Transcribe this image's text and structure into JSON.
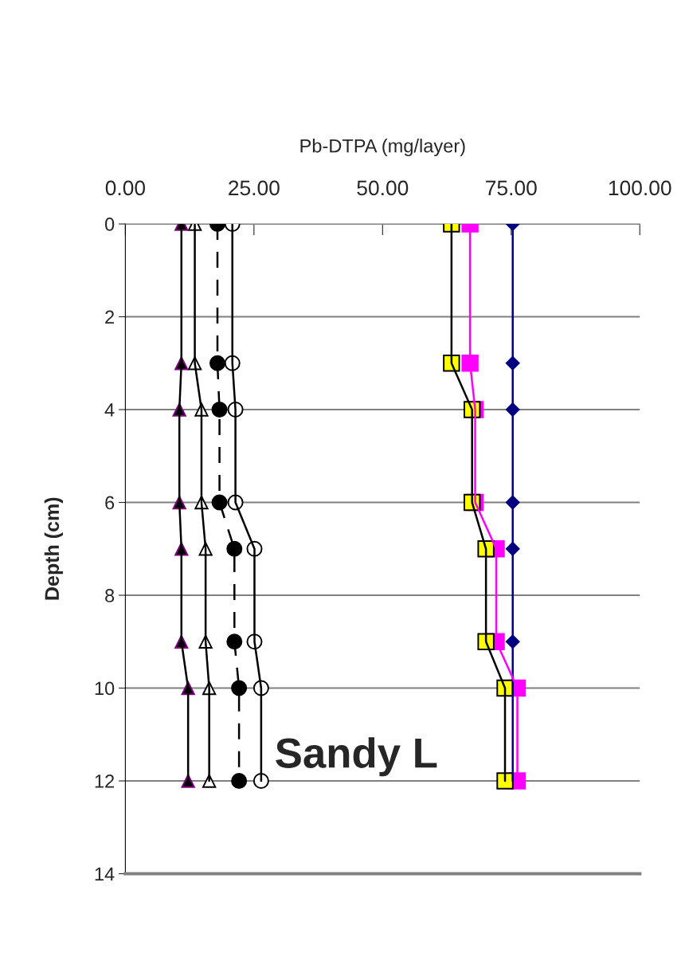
{
  "chart_data": {
    "type": "line",
    "orientation": "horizontal",
    "xlabel": "Pb-DTPA (mg/layer)",
    "ylabel": "Depth (cm)",
    "xlim": [
      0,
      100
    ],
    "xticks": [
      {
        "value": 0,
        "label": "0.00"
      },
      {
        "value": 25,
        "label": "25.00"
      },
      {
        "value": 50,
        "label": "50.00"
      },
      {
        "value": 75,
        "label": "75.00"
      },
      {
        "value": 100,
        "label": "100.00"
      }
    ],
    "ylim": [
      14,
      0
    ],
    "yticks": [
      0,
      2,
      4,
      6,
      8,
      10,
      12,
      14
    ],
    "grid": "y",
    "legend": false,
    "annotations": [
      "Sandy L"
    ],
    "series": [
      {
        "color": "#000000",
        "marker": "triangle",
        "line_style": "solid",
        "x": [
          0,
          3,
          4,
          6,
          7,
          9,
          10,
          12
        ],
        "values": [
          10.9,
          10.9,
          10.5,
          10.5,
          10.9,
          10.9,
          12.2,
          12.2
        ]
      },
      {
        "color": "#ffffff",
        "marker": "triangle",
        "line_style": "solid",
        "x": [
          0,
          3,
          4,
          6,
          7,
          9,
          10,
          12
        ],
        "values": [
          13.5,
          13.5,
          14.8,
          14.8,
          15.6,
          15.6,
          16.3,
          16.3
        ]
      },
      {
        "color": "#000000",
        "marker": "circle",
        "line_style": "dashed",
        "x": [
          0,
          3,
          4,
          6,
          7,
          9,
          10,
          12
        ],
        "values": [
          17.9,
          17.9,
          18.3,
          18.3,
          21.2,
          21.2,
          22.1,
          22.1
        ]
      },
      {
        "color": "#ffffff",
        "marker": "circle",
        "line_style": "solid",
        "x": [
          0,
          3,
          4,
          6,
          7,
          9,
          10,
          12
        ],
        "values": [
          20.8,
          20.8,
          21.4,
          21.4,
          25.1,
          25.1,
          26.4,
          26.4
        ]
      },
      {
        "color": "#ffff00",
        "marker": "square",
        "line_style": "solid",
        "x": [
          0,
          3,
          4,
          6,
          7,
          9,
          10,
          12
        ],
        "values": [
          63.4,
          63.4,
          67.4,
          67.4,
          70.1,
          70.1,
          73.8,
          73.8
        ]
      },
      {
        "color": "#ff00ff",
        "marker": "square",
        "line_style": "solid",
        "x": [
          0,
          3,
          4,
          6,
          7,
          9,
          10,
          12
        ],
        "values": [
          67.0,
          67.0,
          68.0,
          68.0,
          72.1,
          72.1,
          76.2,
          76.2
        ]
      },
      {
        "color": "#000080",
        "marker": "diamond",
        "line_style": "solid",
        "x": [
          0,
          3,
          4,
          6,
          7,
          9,
          10,
          12
        ],
        "values": [
          75.3,
          75.3,
          75.3,
          75.3,
          75.3,
          75.3,
          75.3,
          75.3
        ]
      }
    ]
  }
}
